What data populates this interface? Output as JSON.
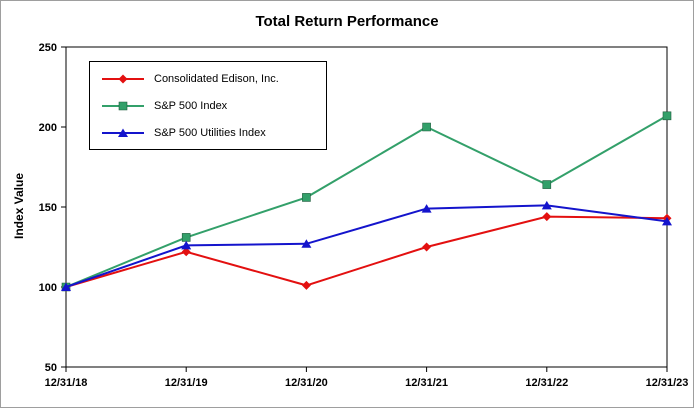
{
  "chart_data": {
    "type": "line",
    "title": "Total Return Performance",
    "xlabel": "",
    "ylabel": "Index Value",
    "x": [
      "12/31/18",
      "12/31/19",
      "12/31/20",
      "12/31/21",
      "12/31/22",
      "12/31/23"
    ],
    "ylim": [
      50,
      250
    ],
    "yticks": [
      50,
      100,
      150,
      200,
      250
    ],
    "grid": false,
    "legend_position": "top-left-inside",
    "series": [
      {
        "name": "Consolidated Edison, Inc.",
        "color": "#e31010",
        "marker": "diamond",
        "values": [
          100,
          122,
          101,
          125,
          144,
          143
        ]
      },
      {
        "name": "S&P 500 Index",
        "color": "#33a06a",
        "marker": "square",
        "values": [
          100,
          131,
          156,
          200,
          164,
          207
        ]
      },
      {
        "name": "S&P 500 Utilities Index",
        "color": "#1414cc",
        "marker": "triangle",
        "values": [
          100,
          126,
          127,
          149,
          151,
          141
        ]
      }
    ]
  }
}
